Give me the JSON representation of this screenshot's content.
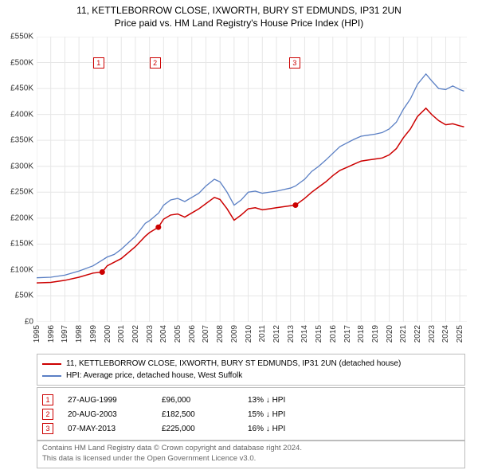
{
  "title_line1": "11, KETTLEBORROW CLOSE, IXWORTH, BURY ST EDMUNDS, IP31 2UN",
  "title_line2": "Price paid vs. HM Land Registry's House Price Index (HPI)",
  "chart": {
    "type": "line",
    "background_color": "#ffffff",
    "grid_color": "#e6e6e6",
    "axis_font_size": 10,
    "x_domain": [
      1995,
      2025.5
    ],
    "y_domain": [
      0,
      550000
    ],
    "y_ticks": [
      0,
      50000,
      100000,
      150000,
      200000,
      250000,
      300000,
      350000,
      400000,
      450000,
      500000,
      550000
    ],
    "y_tick_labels": [
      "£0",
      "£50K",
      "£100K",
      "£150K",
      "£200K",
      "£250K",
      "£300K",
      "£350K",
      "£400K",
      "£450K",
      "£500K",
      "£550K"
    ],
    "x_ticks": [
      1995,
      1996,
      1997,
      1998,
      1999,
      2000,
      2001,
      2002,
      2003,
      2004,
      2005,
      2006,
      2007,
      2008,
      2009,
      2010,
      2011,
      2012,
      2013,
      2014,
      2015,
      2016,
      2017,
      2018,
      2019,
      2020,
      2021,
      2022,
      2023,
      2024,
      2025
    ],
    "series": [
      {
        "name": "hpi",
        "color": "#5a7fc4",
        "width": 1.3,
        "points": [
          [
            1995,
            85000
          ],
          [
            1996,
            86000
          ],
          [
            1997,
            90000
          ],
          [
            1998,
            98000
          ],
          [
            1999,
            108000
          ],
          [
            2000,
            125000
          ],
          [
            2000.5,
            130000
          ],
          [
            2001,
            140000
          ],
          [
            2002,
            165000
          ],
          [
            2002.7,
            190000
          ],
          [
            2003,
            195000
          ],
          [
            2003.65,
            210000
          ],
          [
            2004,
            225000
          ],
          [
            2004.5,
            235000
          ],
          [
            2005,
            238000
          ],
          [
            2005.5,
            232000
          ],
          [
            2006,
            240000
          ],
          [
            2006.5,
            248000
          ],
          [
            2007,
            262000
          ],
          [
            2007.6,
            275000
          ],
          [
            2008,
            270000
          ],
          [
            2008.5,
            250000
          ],
          [
            2009,
            225000
          ],
          [
            2009.5,
            235000
          ],
          [
            2010,
            250000
          ],
          [
            2010.5,
            252000
          ],
          [
            2011,
            248000
          ],
          [
            2011.5,
            250000
          ],
          [
            2012,
            252000
          ],
          [
            2012.5,
            255000
          ],
          [
            2013,
            258000
          ],
          [
            2013.35,
            262000
          ],
          [
            2014,
            275000
          ],
          [
            2014.5,
            290000
          ],
          [
            2015,
            300000
          ],
          [
            2015.5,
            312000
          ],
          [
            2016,
            325000
          ],
          [
            2016.5,
            338000
          ],
          [
            2017,
            345000
          ],
          [
            2017.5,
            352000
          ],
          [
            2018,
            358000
          ],
          [
            2018.5,
            360000
          ],
          [
            2019,
            362000
          ],
          [
            2019.5,
            365000
          ],
          [
            2020,
            372000
          ],
          [
            2020.5,
            385000
          ],
          [
            2021,
            410000
          ],
          [
            2021.5,
            430000
          ],
          [
            2022,
            458000
          ],
          [
            2022.6,
            478000
          ],
          [
            2023,
            465000
          ],
          [
            2023.5,
            450000
          ],
          [
            2024,
            448000
          ],
          [
            2024.5,
            455000
          ],
          [
            2025,
            448000
          ],
          [
            2025.3,
            445000
          ]
        ]
      },
      {
        "name": "property",
        "color": "#cc0000",
        "width": 1.5,
        "points": [
          [
            1995,
            75000
          ],
          [
            1996,
            76000
          ],
          [
            1997,
            80000
          ],
          [
            1998,
            86000
          ],
          [
            1999,
            94000
          ],
          [
            1999.65,
            96000
          ],
          [
            2000,
            108000
          ],
          [
            2001,
            122000
          ],
          [
            2002,
            145000
          ],
          [
            2002.7,
            165000
          ],
          [
            2003,
            172000
          ],
          [
            2003.63,
            182500
          ],
          [
            2004,
            198000
          ],
          [
            2004.5,
            206000
          ],
          [
            2005,
            208000
          ],
          [
            2005.5,
            202000
          ],
          [
            2006,
            210000
          ],
          [
            2006.5,
            218000
          ],
          [
            2007,
            228000
          ],
          [
            2007.6,
            240000
          ],
          [
            2008,
            236000
          ],
          [
            2008.5,
            218000
          ],
          [
            2009,
            196000
          ],
          [
            2009.5,
            206000
          ],
          [
            2010,
            218000
          ],
          [
            2010.5,
            220000
          ],
          [
            2011,
            216000
          ],
          [
            2011.5,
            218000
          ],
          [
            2012,
            220000
          ],
          [
            2012.5,
            222000
          ],
          [
            2013,
            224000
          ],
          [
            2013.35,
            225000
          ],
          [
            2014,
            238000
          ],
          [
            2014.5,
            250000
          ],
          [
            2015,
            260000
          ],
          [
            2015.5,
            270000
          ],
          [
            2016,
            282000
          ],
          [
            2016.5,
            292000
          ],
          [
            2017,
            298000
          ],
          [
            2017.5,
            304000
          ],
          [
            2018,
            310000
          ],
          [
            2018.5,
            312000
          ],
          [
            2019,
            314000
          ],
          [
            2019.5,
            316000
          ],
          [
            2020,
            322000
          ],
          [
            2020.5,
            334000
          ],
          [
            2021,
            355000
          ],
          [
            2021.5,
            372000
          ],
          [
            2022,
            396000
          ],
          [
            2022.6,
            412000
          ],
          [
            2023,
            400000
          ],
          [
            2023.5,
            388000
          ],
          [
            2024,
            380000
          ],
          [
            2024.5,
            382000
          ],
          [
            2025,
            378000
          ],
          [
            2025.3,
            376000
          ]
        ]
      }
    ],
    "markers": [
      {
        "num": "1",
        "x": 1999.65,
        "y": 96000,
        "box_x": 1999.0,
        "box_y": 510000
      },
      {
        "num": "2",
        "x": 2003.63,
        "y": 182500,
        "box_x": 2003.0,
        "box_y": 510000
      },
      {
        "num": "3",
        "x": 2013.35,
        "y": 225000,
        "box_x": 2012.9,
        "box_y": 510000
      }
    ]
  },
  "legend": {
    "border_color": "#bcbcbc",
    "items": [
      {
        "color": "#cc0000",
        "label": "11, KETTLEBORROW CLOSE, IXWORTH, BURY ST EDMUNDS, IP31 2UN (detached house)"
      },
      {
        "color": "#5a7fc4",
        "label": "HPI: Average price, detached house, West Suffolk"
      }
    ]
  },
  "events": {
    "rows": [
      {
        "num": "1",
        "date": "27-AUG-1999",
        "price": "£96,000",
        "delta": "13% ↓ HPI"
      },
      {
        "num": "2",
        "date": "20-AUG-2003",
        "price": "£182,500",
        "delta": "15% ↓ HPI"
      },
      {
        "num": "3",
        "date": "07-MAY-2013",
        "price": "£225,000",
        "delta": "16% ↓ HPI"
      }
    ]
  },
  "footer_line1": "Contains HM Land Registry data © Crown copyright and database right 2024.",
  "footer_line2": "This data is licensed under the Open Government Licence v3.0."
}
